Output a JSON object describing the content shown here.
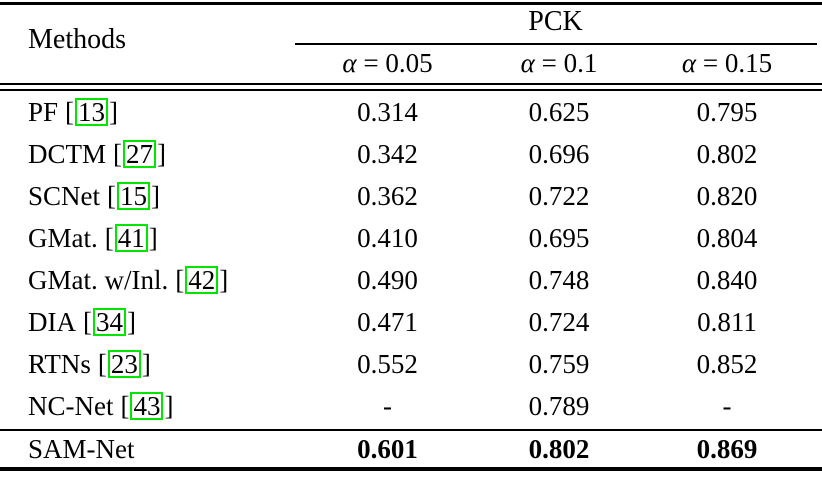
{
  "colors": {
    "background": "#ffffff",
    "text": "#000000",
    "citation_box": "#00e400"
  },
  "table": {
    "methods_header": "Methods",
    "group_header": "PCK",
    "columns": [
      {
        "symbol": "α",
        "rest": "= 0.05"
      },
      {
        "symbol": "α",
        "rest": "= 0.1"
      },
      {
        "symbol": "α",
        "rest": "= 0.15"
      }
    ],
    "bracket_open": "[",
    "bracket_close": "]",
    "rows": [
      {
        "name": "PF",
        "cite": "13",
        "values": [
          "0.314",
          "0.625",
          "0.795"
        ]
      },
      {
        "name": "DCTM",
        "cite": "27",
        "values": [
          "0.342",
          "0.696",
          "0.802"
        ]
      },
      {
        "name": "SCNet",
        "cite": "15",
        "values": [
          "0.362",
          "0.722",
          "0.820"
        ]
      },
      {
        "name": "GMat.",
        "cite": "41",
        "values": [
          "0.410",
          "0.695",
          "0.804"
        ]
      },
      {
        "name": "GMat. w/Inl.",
        "cite": "42",
        "values": [
          "0.490",
          "0.748",
          "0.840"
        ]
      },
      {
        "name": "DIA",
        "cite": "34",
        "values": [
          "0.471",
          "0.724",
          "0.811"
        ]
      },
      {
        "name": "RTNs",
        "cite": "23",
        "values": [
          "0.552",
          "0.759",
          "0.852"
        ]
      },
      {
        "name": "NC-Net",
        "cite": "43",
        "values": [
          "-",
          "0.789",
          "-"
        ]
      }
    ],
    "highlight_row": {
      "name": "SAM-Net",
      "values": [
        "0.601",
        "0.802",
        "0.869"
      ]
    }
  }
}
